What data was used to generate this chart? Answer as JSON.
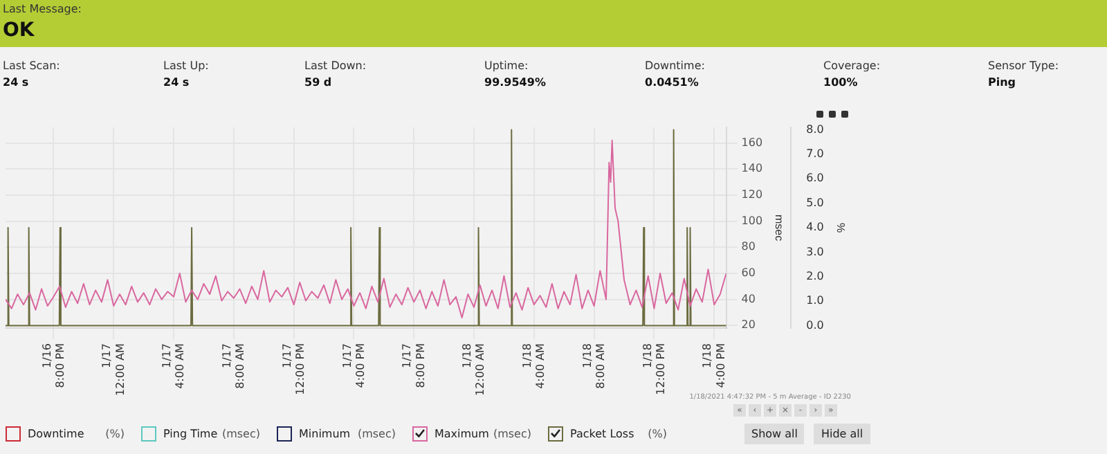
{
  "chart_data": [
    {
      "type": "other",
      "annotations": [
        "Last Message:",
        "OK",
        "Last Scan:",
        "24 s",
        "Last Up:",
        "24 s",
        "Last Down:",
        "59 d",
        "Uptime:",
        "99.9549%",
        "Downtime:",
        "0.0451%",
        "Coverage:",
        "100%",
        "Sensor Type:",
        "Ping"
      ]
    },
    {
      "type": "line",
      "ylabel": "msec",
      "y2label": "%",
      "xlim": [
        "2021-01-16T16:48",
        "2021-01-18T16:48"
      ],
      "xticks": [
        {
          "value": "2021-01-16T20:00",
          "label": "1/16 8:00 PM"
        },
        {
          "value": "2021-01-17T00:00",
          "label": "1/17 12:00 AM"
        },
        {
          "value": "2021-01-17T04:00",
          "label": "1/17 4:00 AM"
        },
        {
          "value": "2021-01-17T08:00",
          "label": "1/17 8:00 AM"
        },
        {
          "value": "2021-01-17T12:00",
          "label": "1/17 12:00 PM"
        },
        {
          "value": "2021-01-17T16:00",
          "label": "1/17 4:00 PM"
        },
        {
          "value": "2021-01-17T20:00",
          "label": "1/17 8:00 PM"
        },
        {
          "value": "2021-01-18T00:00",
          "label": "1/18 12:00 AM"
        },
        {
          "value": "2021-01-18T04:00",
          "label": "1/18 4:00 AM"
        },
        {
          "value": "2021-01-18T08:00",
          "label": "1/18 8:00 AM"
        },
        {
          "value": "2021-01-18T12:00",
          "label": "1/18 12:00 PM"
        },
        {
          "value": "2021-01-18T16:00",
          "label": "1/18 4:00 PM"
        }
      ],
      "ylim": [
        18,
        172
      ],
      "yticks": [
        20,
        40,
        60,
        80,
        100,
        120,
        140,
        160
      ],
      "y2lim": [
        -0.1,
        8.1
      ],
      "y2ticks": [
        {
          "value": 0,
          "label": "0.0"
        },
        {
          "value": 1,
          "label": "1.0"
        },
        {
          "value": 2,
          "label": "2.0"
        },
        {
          "value": 3,
          "label": "3.0"
        },
        {
          "value": 4,
          "label": "4.0"
        },
        {
          "value": 5,
          "label": "5.0"
        },
        {
          "value": 6,
          "label": "6.0"
        },
        {
          "value": 7,
          "label": "7.0"
        },
        {
          "value": 8,
          "label": "8.0"
        }
      ],
      "grid": true,
      "legend": "bottom",
      "marker": "none",
      "line_style": "solid",
      "series": [
        {
          "name": "Downtime",
          "color": "#cc2a36",
          "axis": "y2"
        },
        {
          "name": "Ping Time",
          "color": "#5cc8c0"
        },
        {
          "name": "Minimum",
          "color": "#1c2456"
        },
        {
          "name": "Maximum",
          "color": "#d9679f",
          "x": [
            "2021-01-16T16:48",
            "2021-01-16T17:12",
            "2021-01-16T17:36",
            "2021-01-16T18:00",
            "2021-01-16T18:24",
            "2021-01-16T18:48",
            "2021-01-16T19:12",
            "2021-01-16T19:36",
            "2021-01-16T20:00",
            "2021-01-16T20:24",
            "2021-01-16T20:48",
            "2021-01-16T21:12",
            "2021-01-16T21:36",
            "2021-01-16T22:00",
            "2021-01-16T22:24",
            "2021-01-16T22:48",
            "2021-01-16T23:12",
            "2021-01-16T23:36",
            "2021-01-17T00:00",
            "2021-01-17T00:24",
            "2021-01-17T00:48",
            "2021-01-17T01:12",
            "2021-01-17T01:36",
            "2021-01-17T02:00",
            "2021-01-17T02:24",
            "2021-01-17T02:48",
            "2021-01-17T03:12",
            "2021-01-17T03:36",
            "2021-01-17T04:00",
            "2021-01-17T04:24",
            "2021-01-17T04:48",
            "2021-01-17T05:12",
            "2021-01-17T05:36",
            "2021-01-17T06:00",
            "2021-01-17T06:24",
            "2021-01-17T06:48",
            "2021-01-17T07:12",
            "2021-01-17T07:36",
            "2021-01-17T08:00",
            "2021-01-17T08:24",
            "2021-01-17T08:48",
            "2021-01-17T09:12",
            "2021-01-17T09:36",
            "2021-01-17T10:00",
            "2021-01-17T10:24",
            "2021-01-17T10:48",
            "2021-01-17T11:12",
            "2021-01-17T11:36",
            "2021-01-17T12:00",
            "2021-01-17T12:24",
            "2021-01-17T12:48",
            "2021-01-17T13:12",
            "2021-01-17T13:36",
            "2021-01-17T14:00",
            "2021-01-17T14:24",
            "2021-01-17T14:48",
            "2021-01-17T15:12",
            "2021-01-17T15:36",
            "2021-01-17T16:00",
            "2021-01-17T16:24",
            "2021-01-17T16:48",
            "2021-01-17T17:12",
            "2021-01-17T17:36",
            "2021-01-17T18:00",
            "2021-01-17T18:24",
            "2021-01-17T18:48",
            "2021-01-17T19:12",
            "2021-01-17T19:36",
            "2021-01-17T20:00",
            "2021-01-17T20:24",
            "2021-01-17T20:48",
            "2021-01-17T21:12",
            "2021-01-17T21:36",
            "2021-01-17T22:00",
            "2021-01-17T22:24",
            "2021-01-17T22:48",
            "2021-01-17T23:12",
            "2021-01-17T23:36",
            "2021-01-18T00:00",
            "2021-01-18T00:24",
            "2021-01-18T00:48",
            "2021-01-18T01:12",
            "2021-01-18T01:36",
            "2021-01-18T02:00",
            "2021-01-18T02:24",
            "2021-01-18T02:48",
            "2021-01-18T03:12",
            "2021-01-18T03:36",
            "2021-01-18T04:00",
            "2021-01-18T04:24",
            "2021-01-18T04:48",
            "2021-01-18T05:12",
            "2021-01-18T05:36",
            "2021-01-18T06:00",
            "2021-01-18T06:24",
            "2021-01-18T06:48",
            "2021-01-18T07:12",
            "2021-01-18T07:36",
            "2021-01-18T08:00",
            "2021-01-18T08:24",
            "2021-01-18T08:48",
            "2021-01-18T09:00",
            "2021-01-18T09:06",
            "2021-01-18T09:12",
            "2021-01-18T09:24",
            "2021-01-18T09:36",
            "2021-01-18T10:00",
            "2021-01-18T10:24",
            "2021-01-18T10:48",
            "2021-01-18T11:12",
            "2021-01-18T11:36",
            "2021-01-18T12:00",
            "2021-01-18T12:24",
            "2021-01-18T12:48",
            "2021-01-18T13:12",
            "2021-01-18T13:36",
            "2021-01-18T14:00",
            "2021-01-18T14:24",
            "2021-01-18T14:48",
            "2021-01-18T15:12",
            "2021-01-18T15:36",
            "2021-01-18T16:00",
            "2021-01-18T16:24",
            "2021-01-18T16:48"
          ],
          "values": [
            40,
            33,
            44,
            36,
            45,
            32,
            48,
            35,
            42,
            50,
            34,
            46,
            37,
            52,
            36,
            47,
            38,
            55,
            35,
            44,
            36,
            50,
            38,
            45,
            36,
            48,
            40,
            46,
            42,
            60,
            38,
            47,
            40,
            52,
            44,
            58,
            39,
            46,
            41,
            48,
            37,
            50,
            40,
            62,
            38,
            47,
            42,
            49,
            36,
            53,
            39,
            46,
            41,
            51,
            37,
            55,
            40,
            48,
            35,
            45,
            33,
            50,
            38,
            56,
            34,
            44,
            36,
            49,
            38,
            47,
            33,
            46,
            35,
            55,
            36,
            42,
            26,
            44,
            34,
            51,
            35,
            47,
            33,
            58,
            34,
            45,
            32,
            49,
            36,
            43,
            34,
            52,
            33,
            46,
            36,
            59,
            33,
            47,
            35,
            62,
            40,
            145,
            130,
            162,
            110,
            100,
            55,
            36,
            47,
            34,
            58,
            33,
            60,
            37,
            45,
            32,
            56,
            35,
            48,
            38,
            63,
            36,
            44,
            60
          ]
        },
        {
          "name": "Packet Loss",
          "color": "#6b6b3f",
          "axis": "y2",
          "x": [
            "2021-01-16T16:48",
            "2021-01-16T16:54",
            "2021-01-16T16:58",
            "2021-01-16T17:01",
            "2021-01-16T18:18",
            "2021-01-16T18:21",
            "2021-01-16T18:24",
            "2021-01-16T20:23",
            "2021-01-16T20:26",
            "2021-01-16T20:29",
            "2021-01-17T05:09",
            "2021-01-17T05:12",
            "2021-01-17T05:15",
            "2021-01-17T15:45",
            "2021-01-17T15:48",
            "2021-01-17T15:51",
            "2021-01-17T17:39",
            "2021-01-17T17:42",
            "2021-01-17T17:45",
            "2021-01-18T00:15",
            "2021-01-18T00:18",
            "2021-01-18T00:21",
            "2021-01-18T02:27",
            "2021-01-18T02:30",
            "2021-01-18T02:33",
            "2021-01-18T11:15",
            "2021-01-18T11:18",
            "2021-01-18T11:21",
            "2021-01-18T13:15",
            "2021-01-18T13:18",
            "2021-01-18T13:21",
            "2021-01-18T14:09",
            "2021-01-18T14:12",
            "2021-01-18T14:15",
            "2021-01-18T14:21",
            "2021-01-18T14:24",
            "2021-01-18T14:27",
            "2021-01-18T16:48"
          ],
          "values": [
            0,
            0,
            4,
            0,
            0,
            4,
            0,
            0,
            4,
            0,
            0,
            4,
            0,
            0,
            4,
            0,
            0,
            4,
            0,
            0,
            4,
            0,
            0,
            8,
            0,
            0,
            4,
            0,
            0,
            8,
            0,
            0,
            4,
            0,
            0,
            4,
            0,
            0
          ]
        }
      ],
      "annotations": [
        "1/18/2021 4:47:32 PM - 5 m Average - ID 2230",
        "«",
        "‹",
        "+",
        "×",
        "-",
        "›",
        "»",
        "Show all",
        "Hide all",
        "(%)",
        "(msec)",
        "(msec)",
        "(msec)",
        "(%)"
      ]
    }
  ]
}
